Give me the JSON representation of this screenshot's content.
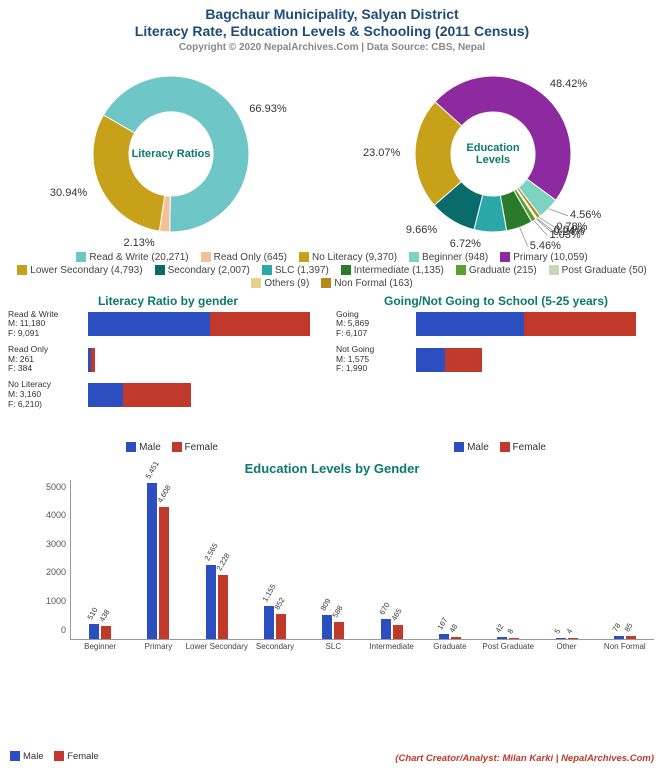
{
  "title_line1": "Bagchaur Municipality, Salyan District",
  "title_line2": "Literacy Rate, Education Levels & Schooling (2011 Census)",
  "copyright": "Copyright © 2020 NepalArchives.Com | Data Source: CBS, Nepal",
  "credit": "(Chart Creator/Analyst: Milan Karki | NepalArchives.Com)",
  "colors": {
    "male": "#2b4fc1",
    "female": "#c0392b",
    "teal_text": "#0a7a6a",
    "title_text": "#1e4b7a"
  },
  "donut1": {
    "center": "Literacy Ratios",
    "slices": [
      {
        "label": "Read & Write (20,271)",
        "value": 66.93,
        "color": "#6fc6c6",
        "show_pct": "66.93%"
      },
      {
        "label": "Read Only (645)",
        "value": 2.13,
        "color": "#f2c197",
        "show_pct": "2.13%"
      },
      {
        "label": "No Literacy (9,370)",
        "value": 30.94,
        "color": "#c8a11a",
        "show_pct": "30.94%"
      }
    ]
  },
  "donut2": {
    "center": "Education Levels",
    "slices": [
      {
        "label": "Primary (10,059)",
        "value": 48.42,
        "color": "#8e2aa0",
        "show_pct": "48.42%"
      },
      {
        "label": "Beginner (948)",
        "value": 4.56,
        "color": "#7cd4c0",
        "show_pct": "4.56%"
      },
      {
        "label": "Non Formal (163)",
        "value": 0.78,
        "color": "#b88a1a",
        "show_pct": "0.78%"
      },
      {
        "label": "Others (9)",
        "value": 0.04,
        "color": "#e8d18f",
        "show_pct": "0.04%"
      },
      {
        "label": "Post Graduate (50)",
        "value": 0.24,
        "color": "#c7d8b8",
        "show_pct": "0.24%"
      },
      {
        "label": "Graduate (215)",
        "value": 1.03,
        "color": "#5aa02c",
        "show_pct": "1.03%"
      },
      {
        "label": "Intermediate (1,135)",
        "value": 5.46,
        "color": "#2a7a2a",
        "show_pct": "5.46%"
      },
      {
        "label": "SLC (1,397)",
        "value": 6.72,
        "color": "#2aa8a8",
        "show_pct": "6.72%"
      },
      {
        "label": "Secondary (2,007)",
        "value": 9.66,
        "color": "#0a6b6b",
        "show_pct": "9.66%"
      },
      {
        "label": "Lower Secondary (4,793)",
        "value": 23.07,
        "color": "#c8a11a",
        "show_pct": "23.07%"
      }
    ]
  },
  "combined_legend": [
    {
      "label": "Read & Write (20,271)",
      "color": "#6fc6c6"
    },
    {
      "label": "Read Only (645)",
      "color": "#f2c197"
    },
    {
      "label": "No Literacy (9,370)",
      "color": "#c8a11a"
    },
    {
      "label": "Beginner (948)",
      "color": "#7cd4c0"
    },
    {
      "label": "Primary (10,059)",
      "color": "#8e2aa0"
    },
    {
      "label": "Lower Secondary (4,793)",
      "color": "#c8a11a"
    },
    {
      "label": "Secondary (2,007)",
      "color": "#0a6b6b"
    },
    {
      "label": "SLC (1,397)",
      "color": "#2aa8a8"
    },
    {
      "label": "Intermediate (1,135)",
      "color": "#2a7a2a"
    },
    {
      "label": "Graduate (215)",
      "color": "#5aa02c"
    },
    {
      "label": "Post Graduate (50)",
      "color": "#c7d8b8"
    },
    {
      "label": "Others (9)",
      "color": "#e8d18f"
    },
    {
      "label": "Non Formal (163)",
      "color": "#b88a1a"
    }
  ],
  "hbar_left": {
    "title": "Literacy Ratio by gender",
    "max": 21000,
    "rows": [
      {
        "l1": "Read & Write",
        "l2": "M: 11,180",
        "l3": "F: 9,091",
        "m": 11180,
        "f": 9091
      },
      {
        "l1": "Read Only",
        "l2": "M: 261",
        "l3": "F: 384",
        "m": 261,
        "f": 384
      },
      {
        "l1": "No Literacy",
        "l2": "M: 3,160",
        "l3": "F: 6,210)",
        "m": 3160,
        "f": 6210
      }
    ]
  },
  "hbar_right": {
    "title": "Going/Not Going to School (5-25 years)",
    "max": 12500,
    "rows": [
      {
        "l1": "Going",
        "l2": "M: 5,869",
        "l3": "F: 6,107",
        "m": 5869,
        "f": 6107
      },
      {
        "l1": "Not Going",
        "l2": "M: 1,575",
        "l3": "F: 1,990",
        "m": 1575,
        "f": 1990
      }
    ]
  },
  "mf_legend": {
    "male": "Male",
    "female": "Female"
  },
  "vbar": {
    "title": "Education Levels by Gender",
    "ymax": 5600,
    "yticks": [
      0,
      1000,
      2000,
      3000,
      4000,
      5000
    ],
    "groups": [
      {
        "label": "Beginner",
        "m": 510,
        "f": 438,
        "m_lbl": "510",
        "f_lbl": "438"
      },
      {
        "label": "Primary",
        "m": 5451,
        "f": 4608,
        "m_lbl": "5,451",
        "f_lbl": "4,608"
      },
      {
        "label": "Lower Secondary",
        "m": 2565,
        "f": 2228,
        "m_lbl": "2,565",
        "f_lbl": "2,228"
      },
      {
        "label": "Secondary",
        "m": 1155,
        "f": 852,
        "m_lbl": "1,155",
        "f_lbl": "852"
      },
      {
        "label": "SLC",
        "m": 809,
        "f": 588,
        "m_lbl": "809",
        "f_lbl": "588"
      },
      {
        "label": "Intermediate",
        "m": 670,
        "f": 465,
        "m_lbl": "670",
        "f_lbl": "465"
      },
      {
        "label": "Graduate",
        "m": 167,
        "f": 48,
        "m_lbl": "167",
        "f_lbl": "48"
      },
      {
        "label": "Post Graduate",
        "m": 42,
        "f": 8,
        "m_lbl": "42",
        "f_lbl": "8"
      },
      {
        "label": "Other",
        "m": 5,
        "f": 4,
        "m_lbl": "5",
        "f_lbl": "4"
      },
      {
        "label": "Non Formal",
        "m": 78,
        "f": 85,
        "m_lbl": "78",
        "f_lbl": "85"
      }
    ]
  }
}
